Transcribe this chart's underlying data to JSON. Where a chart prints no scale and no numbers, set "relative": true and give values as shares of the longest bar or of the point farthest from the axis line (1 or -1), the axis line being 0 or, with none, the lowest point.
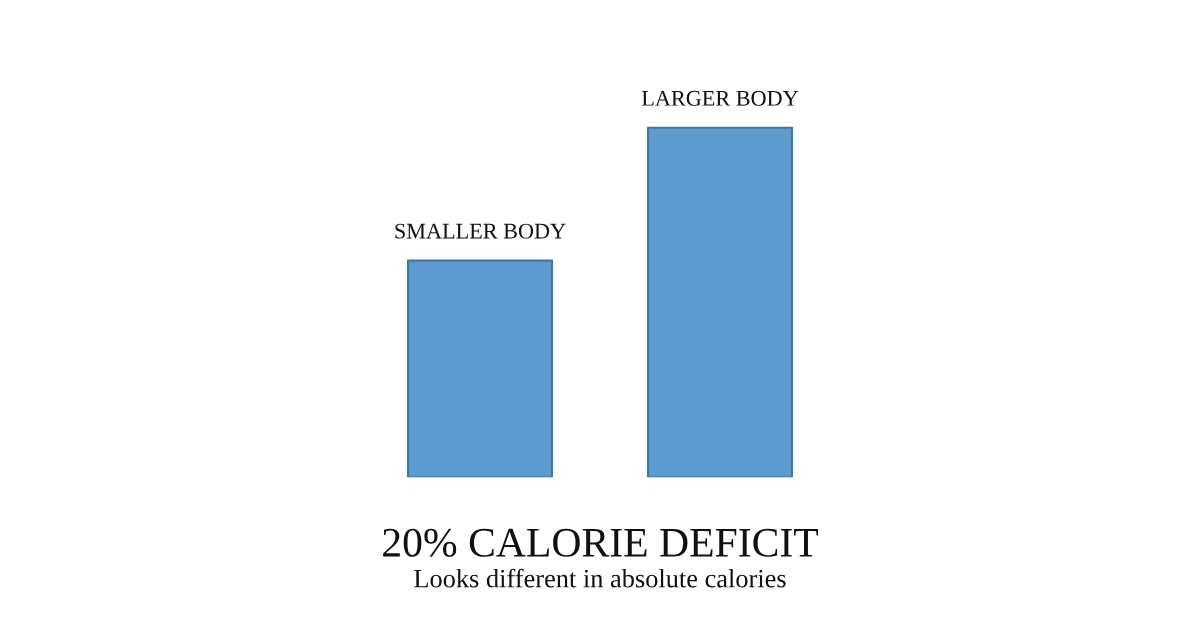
{
  "chart_data": {
    "type": "bar",
    "title": "20% CALORIE DEFICIT",
    "subtitle": "Looks different in absolute calories",
    "categories": [
      "SMALLER BODY",
      "LARGER BODY"
    ],
    "values": [
      0.62,
      1
    ],
    "color": "#5b9bcf",
    "relative": true
  }
}
